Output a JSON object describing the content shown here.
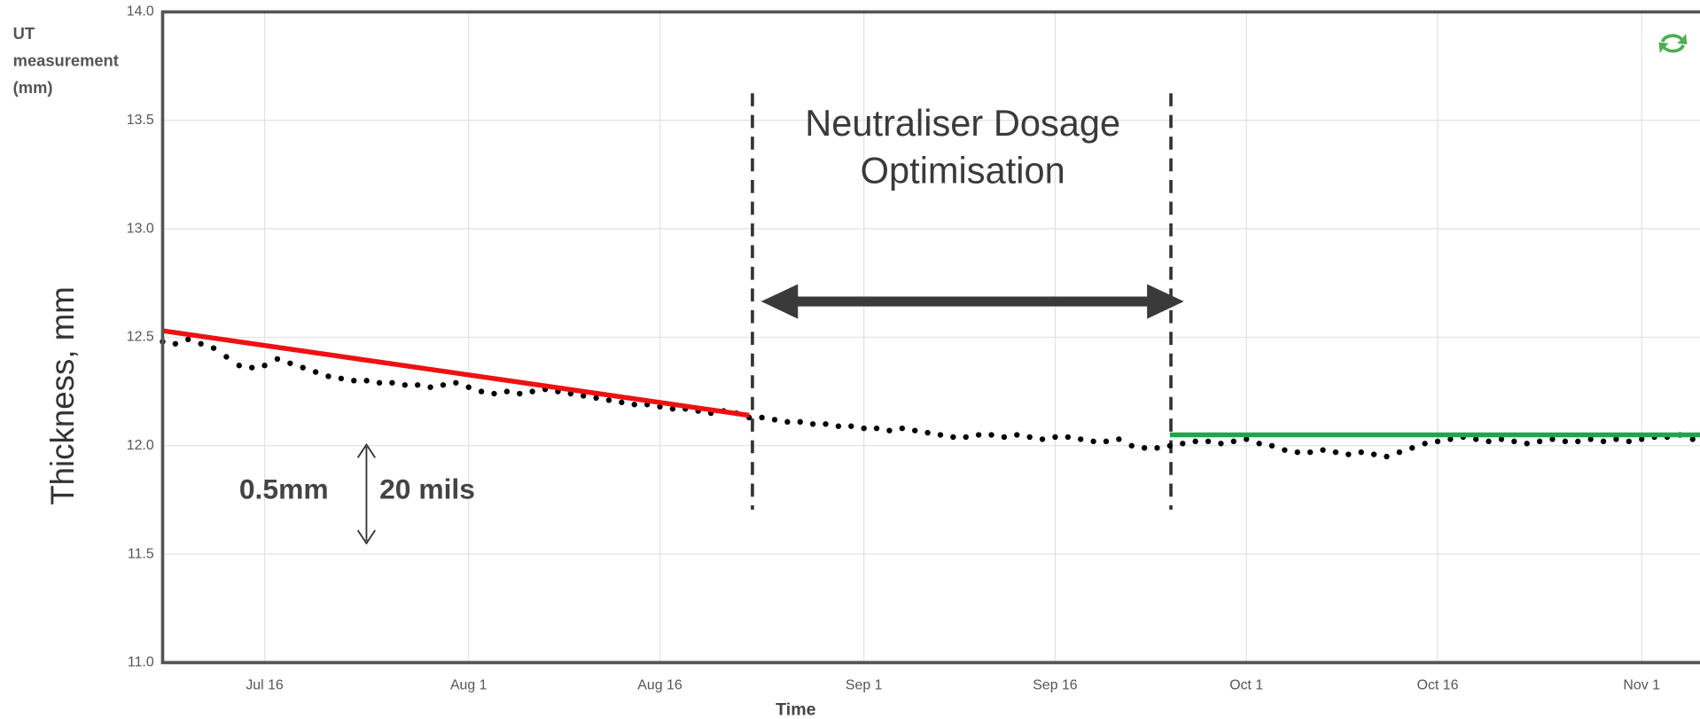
{
  "chart_data": {
    "type": "scatter",
    "y_axis_title_lines": [
      "UT",
      "measurement",
      "(mm)"
    ],
    "y_side_label": "Thickness, mm",
    "x_axis_title": "Time",
    "annotation_lines": [
      "Neutraliser Dosage",
      "Optimisation"
    ],
    "scale_labels": [
      "0.5mm",
      "20 mils"
    ],
    "xlim": [
      "Jul 8",
      "Nov 6"
    ],
    "xticks": [
      "Jul 16",
      "Aug 1",
      "Aug 16",
      "Sep 1",
      "Sep 16",
      "Oct 1",
      "Oct 16",
      "Nov 1"
    ],
    "ylim": [
      11,
      14
    ],
    "yticks": [
      {
        "value": 11,
        "label": "11.0"
      },
      11.5,
      {
        "value": 12,
        "label": "12.0"
      },
      12.5,
      {
        "value": 13,
        "label": "13.0"
      },
      13.5,
      {
        "value": 14,
        "label": "14.0"
      }
    ],
    "grid": true,
    "series": [
      {
        "color": "#000000",
        "marker": "dot",
        "x": [
          "Jul 8",
          "Jul 9",
          "Jul 10",
          "Jul 11",
          "Jul 12",
          "Jul 13",
          "Jul 14",
          "Jul 15",
          "Jul 16",
          "Jul 17",
          "Jul 18",
          "Jul 19",
          "Jul 20",
          "Jul 21",
          "Jul 22",
          "Jul 23",
          "Jul 24",
          "Jul 25",
          "Jul 26",
          "Jul 27",
          "Jul 28",
          "Jul 29",
          "Jul 30",
          "Jul 31",
          "Aug 1",
          "Aug 2",
          "Aug 3",
          "Aug 4",
          "Aug 5",
          "Aug 6",
          "Aug 7",
          "Aug 8",
          "Aug 9",
          "Aug 10",
          "Aug 11",
          "Aug 12",
          "Aug 13",
          "Aug 14",
          "Aug 15",
          "Aug 16",
          "Aug 17",
          "Aug 18",
          "Aug 19",
          "Aug 20",
          "Aug 21",
          "Aug 22",
          "Aug 23",
          "Aug 24",
          "Aug 25",
          "Aug 26",
          "Aug 27",
          "Aug 28",
          "Aug 29",
          "Aug 30",
          "Aug 31",
          "Sep 1",
          "Sep 2",
          "Sep 3",
          "Sep 4",
          "Sep 5",
          "Sep 6",
          "Sep 7",
          "Sep 8",
          "Sep 9",
          "Sep 10",
          "Sep 11",
          "Sep 12",
          "Sep 13",
          "Sep 14",
          "Sep 15",
          "Sep 16",
          "Sep 17",
          "Sep 18",
          "Sep 19",
          "Sep 20",
          "Sep 21",
          "Sep 22",
          "Sep 23",
          "Sep 24",
          "Sep 25",
          "Sep 26",
          "Sep 27",
          "Sep 28",
          "Sep 29",
          "Sep 30",
          "Oct 1",
          "Oct 2",
          "Oct 3",
          "Oct 4",
          "Oct 5",
          "Oct 6",
          "Oct 7",
          "Oct 8",
          "Oct 9",
          "Oct 10",
          "Oct 11",
          "Oct 12",
          "Oct 13",
          "Oct 14",
          "Oct 15",
          "Oct 16",
          "Oct 17",
          "Oct 18",
          "Oct 19",
          "Oct 20",
          "Oct 21",
          "Oct 22",
          "Oct 23",
          "Oct 24",
          "Oct 25",
          "Oct 26",
          "Oct 27",
          "Oct 28",
          "Oct 29",
          "Oct 30",
          "Oct 31",
          "Nov 1",
          "Nov 2",
          "Nov 3",
          "Nov 4",
          "Nov 5"
        ],
        "values": [
          12.48,
          12.47,
          12.49,
          12.47,
          12.45,
          12.41,
          12.37,
          12.36,
          12.37,
          12.4,
          12.38,
          12.36,
          12.34,
          12.32,
          12.31,
          12.3,
          12.3,
          12.29,
          12.29,
          12.28,
          12.28,
          12.27,
          12.28,
          12.29,
          12.27,
          12.25,
          12.24,
          12.25,
          12.24,
          12.25,
          12.26,
          12.25,
          12.24,
          12.23,
          12.22,
          12.21,
          12.2,
          12.19,
          12.19,
          12.18,
          12.17,
          12.17,
          12.16,
          12.15,
          12.16,
          12.15,
          12.13,
          12.13,
          12.12,
          12.11,
          12.11,
          12.1,
          12.1,
          12.09,
          12.09,
          12.08,
          12.08,
          12.07,
          12.08,
          12.07,
          12.06,
          12.05,
          12.04,
          12.04,
          12.05,
          12.05,
          12.04,
          12.05,
          12.04,
          12.03,
          12.04,
          12.04,
          12.03,
          12.02,
          12.02,
          12.03,
          12.0,
          11.99,
          11.99,
          12.0,
          12.01,
          12.02,
          12.02,
          12.01,
          12.02,
          12.03,
          12.01,
          12.0,
          11.98,
          11.97,
          11.97,
          11.98,
          11.97,
          11.96,
          11.97,
          11.96,
          11.95,
          11.97,
          11.99,
          12.01,
          12.02,
          12.03,
          12.04,
          12.03,
          12.02,
          12.03,
          12.02,
          12.01,
          12.02,
          12.03,
          12.02,
          12.02,
          12.03,
          12.02,
          12.03,
          12.02,
          12.03,
          12.04,
          12.04,
          12.05,
          12.03
        ]
      },
      {
        "color": "#ee1111",
        "marker": "line",
        "x": [
          "Jul 8",
          "Aug 23"
        ],
        "values": [
          12.53,
          12.14
        ]
      },
      {
        "color": "#1aa84a",
        "marker": "line",
        "x": [
          "Sep 25",
          "Nov 6"
        ],
        "values": [
          12.05,
          12.05
        ]
      }
    ]
  }
}
